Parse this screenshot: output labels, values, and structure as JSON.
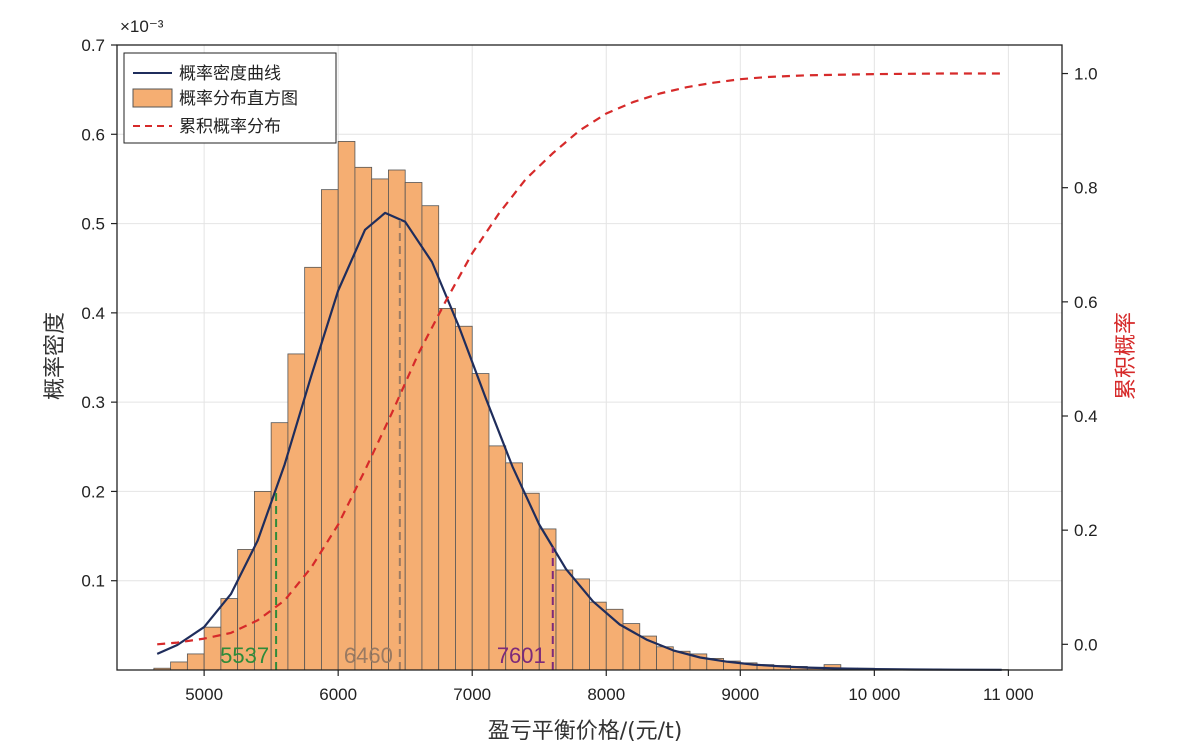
{
  "chart_data": {
    "type": "bar",
    "xlabel": "盈亏平衡价格/(元/t)",
    "ylabel": "概率密度",
    "y2label": "累积概率",
    "y_multiplier": "×10⁻³",
    "xlim": [
      4350,
      11400
    ],
    "ylim": [
      0,
      0.7
    ],
    "y2lim": [
      -0.045,
      1.05
    ],
    "x_ticks": [
      5000,
      6000,
      7000,
      8000,
      9000,
      10000,
      11000
    ],
    "x_tick_labels": [
      "5000",
      "6000",
      "7000",
      "8000",
      "9000",
      "10 000",
      "11 000"
    ],
    "y_ticks": [
      0.1,
      0.2,
      0.3,
      0.4,
      0.5,
      0.6,
      0.7
    ],
    "y_tick_labels": [
      "0.1",
      "0.2",
      "0.3",
      "0.4",
      "0.5",
      "0.6",
      "0.7"
    ],
    "y2_ticks": [
      0,
      0.2,
      0.4,
      0.6,
      0.8,
      1.0
    ],
    "y2_tick_labels": [
      "0.0",
      "0.2",
      "0.4",
      "0.6",
      "0.8",
      "1.0"
    ],
    "grid": true,
    "legend_position": "top-left",
    "legend": [
      "概率密度曲线",
      "概率分布直方图",
      "累积概率分布"
    ],
    "colors": {
      "density_curve": "#1f2d5c",
      "histogram": "#f5ae72",
      "histogram_edge": "#555555",
      "cumulative": "#d62a2a",
      "p5_line": "#2e8b3a",
      "median_line": "#9a7a62",
      "p95_line": "#7d2a7a"
    },
    "histogram": {
      "bin_width": 125,
      "bins_start": [
        4625,
        4750,
        4875,
        5000,
        5125,
        5250,
        5375,
        5500,
        5625,
        5750,
        5875,
        6000,
        6125,
        6250,
        6375,
        6500,
        6625,
        6750,
        6875,
        7000,
        7125,
        7250,
        7375,
        7500,
        7625,
        7750,
        7875,
        8000,
        8125,
        8250,
        8375,
        8500,
        8625,
        8750,
        8875,
        9000,
        9125,
        9250,
        9375,
        9500,
        9625,
        9750,
        9875,
        10000,
        10125,
        10250,
        10375,
        10500,
        10625,
        10750,
        10875
      ],
      "density": [
        0.002,
        0.009,
        0.018,
        0.048,
        0.08,
        0.135,
        0.2,
        0.277,
        0.354,
        0.451,
        0.538,
        0.592,
        0.563,
        0.55,
        0.56,
        0.546,
        0.52,
        0.405,
        0.385,
        0.332,
        0.251,
        0.232,
        0.198,
        0.158,
        0.112,
        0.102,
        0.076,
        0.068,
        0.052,
        0.038,
        0.026,
        0.021,
        0.018,
        0.013,
        0.01,
        0.008,
        0.006,
        0.005,
        0.004,
        0.003,
        0.006,
        0.002,
        0.002,
        0.001,
        0.001,
        0.001,
        0.001,
        0.0005,
        0.0005,
        0.0005,
        0.0005
      ]
    },
    "density_curve": {
      "x": [
        4650,
        4800,
        5000,
        5200,
        5400,
        5600,
        5800,
        6000,
        6200,
        6350,
        6500,
        6700,
        6900,
        7100,
        7300,
        7500,
        7700,
        7900,
        8100,
        8300,
        8500,
        8700,
        8900,
        9100,
        9300,
        9500,
        9700,
        10000,
        10300,
        10600,
        10950
      ],
      "y": [
        0.018,
        0.028,
        0.048,
        0.085,
        0.145,
        0.23,
        0.33,
        0.425,
        0.493,
        0.512,
        0.502,
        0.457,
        0.385,
        0.305,
        0.228,
        0.163,
        0.113,
        0.077,
        0.051,
        0.034,
        0.022,
        0.014,
        0.0093,
        0.0061,
        0.0041,
        0.0027,
        0.0018,
        0.001,
        0.0006,
        0.0003,
        0.0002
      ]
    },
    "cumulative_curve": {
      "x": [
        4650,
        4800,
        5000,
        5200,
        5400,
        5600,
        5800,
        6000,
        6200,
        6400,
        6600,
        6800,
        7000,
        7200,
        7400,
        7600,
        7800,
        8000,
        8200,
        8400,
        8600,
        8800,
        9000,
        9200,
        9500,
        10000,
        10500,
        10950
      ],
      "y": [
        0.0,
        0.003,
        0.01,
        0.02,
        0.042,
        0.077,
        0.135,
        0.21,
        0.305,
        0.405,
        0.51,
        0.6,
        0.685,
        0.755,
        0.815,
        0.86,
        0.9,
        0.93,
        0.95,
        0.965,
        0.976,
        0.984,
        0.99,
        0.994,
        0.997,
        0.999,
        1.0,
        1.0
      ]
    },
    "markers": [
      {
        "label": "5537",
        "x": 5537,
        "color_key": "p5_line"
      },
      {
        "label": "6460",
        "x": 6460,
        "color_key": "median_line"
      },
      {
        "label": "7601",
        "x": 7601,
        "color_key": "p95_line"
      }
    ]
  }
}
